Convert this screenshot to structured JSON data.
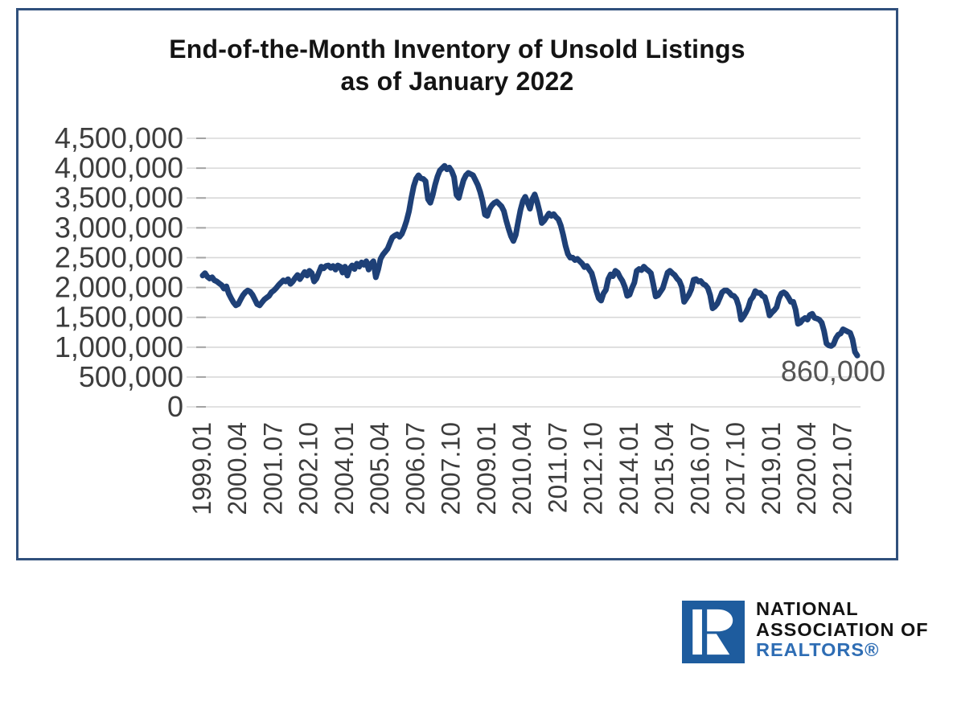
{
  "title": {
    "line1": "End-of-the-Month Inventory of Unsold Listings",
    "line2": "as of January 2022"
  },
  "colors": {
    "line": "#1e4077",
    "frame_border": "#30507c",
    "gridline": "#d8d8d8",
    "axis_tick": "#a3a3a3",
    "axis_text": "#3d3d3d",
    "annotation_text": "#545454",
    "title_text": "#141414",
    "logo_square": "#1e5c9e",
    "logo_text": "#131313",
    "logo_realtors_text": "#2e6db4"
  },
  "chart_data": {
    "type": "line",
    "title": "End-of-the-Month Inventory of Unsold Listings as of January 2022",
    "series_name": "End-of-month inventory of unsold listings",
    "grid": "horizontal",
    "legend": "none",
    "x_start": "1999.01",
    "x_end": "2022.01",
    "x_interval_months": 1,
    "x_tick_labels": [
      "1999.01",
      "2000.04",
      "2001.07",
      "2002.10",
      "2004.01",
      "2005.04",
      "2006.07",
      "2007.10",
      "2009.01",
      "2010.04",
      "2011.07",
      "2012.10",
      "2014.01",
      "2015.04",
      "2016.07",
      "2017.10",
      "2019.01",
      "2020.04",
      "2021.07"
    ],
    "x_tick_step_months": 15,
    "y_tick_labels": [
      "4,500,000",
      "4,000,000",
      "3,500,000",
      "3,000,000",
      "2,500,000",
      "2,000,000",
      "1,500,000",
      "1,000,000",
      "500,000",
      "0"
    ],
    "ylim": [
      0,
      4500000
    ],
    "y_unit": "listings",
    "values_unit": "millions_of_listings",
    "values_millions": [
      2.2,
      2.24,
      2.18,
      2.15,
      2.17,
      2.12,
      2.1,
      2.07,
      2.04,
      1.98,
      2.02,
      1.9,
      1.82,
      1.75,
      1.7,
      1.72,
      1.8,
      1.87,
      1.92,
      1.95,
      1.93,
      1.88,
      1.8,
      1.72,
      1.7,
      1.75,
      1.8,
      1.83,
      1.86,
      1.92,
      1.95,
      1.99,
      2.04,
      2.08,
      2.12,
      2.1,
      2.14,
      2.06,
      2.1,
      2.16,
      2.21,
      2.14,
      2.2,
      2.26,
      2.2,
      2.28,
      2.24,
      2.1,
      2.15,
      2.25,
      2.35,
      2.32,
      2.36,
      2.37,
      2.33,
      2.36,
      2.3,
      2.37,
      2.35,
      2.25,
      2.35,
      2.2,
      2.32,
      2.37,
      2.31,
      2.4,
      2.35,
      2.42,
      2.38,
      2.44,
      2.3,
      2.4,
      2.44,
      2.17,
      2.3,
      2.48,
      2.55,
      2.6,
      2.65,
      2.75,
      2.84,
      2.87,
      2.89,
      2.85,
      2.9,
      3.0,
      3.12,
      3.28,
      3.5,
      3.7,
      3.82,
      3.88,
      3.83,
      3.82,
      3.78,
      3.48,
      3.42,
      3.55,
      3.72,
      3.86,
      3.96,
      4.0,
      4.04,
      3.98,
      4.01,
      3.95,
      3.85,
      3.55,
      3.5,
      3.66,
      3.8,
      3.88,
      3.92,
      3.9,
      3.88,
      3.8,
      3.72,
      3.6,
      3.45,
      3.22,
      3.2,
      3.32,
      3.38,
      3.42,
      3.44,
      3.4,
      3.36,
      3.28,
      3.12,
      2.98,
      2.86,
      2.78,
      2.88,
      3.1,
      3.3,
      3.45,
      3.52,
      3.42,
      3.32,
      3.48,
      3.56,
      3.44,
      3.28,
      3.08,
      3.12,
      3.18,
      3.24,
      3.2,
      3.23,
      3.18,
      3.14,
      3.04,
      2.88,
      2.7,
      2.56,
      2.5,
      2.5,
      2.46,
      2.48,
      2.44,
      2.4,
      2.34,
      2.36,
      2.3,
      2.24,
      2.1,
      1.94,
      1.82,
      1.78,
      1.9,
      1.96,
      2.14,
      2.22,
      2.19,
      2.28,
      2.25,
      2.17,
      2.11,
      2.01,
      1.86,
      1.88,
      1.99,
      2.08,
      2.28,
      2.31,
      2.29,
      2.35,
      2.31,
      2.28,
      2.24,
      2.05,
      1.85,
      1.87,
      1.93,
      1.99,
      2.12,
      2.25,
      2.28,
      2.24,
      2.21,
      2.15,
      2.11,
      2.01,
      1.76,
      1.82,
      1.88,
      1.97,
      2.13,
      2.14,
      2.1,
      2.11,
      2.06,
      2.04,
      1.99,
      1.87,
      1.65,
      1.68,
      1.73,
      1.82,
      1.92,
      1.95,
      1.95,
      1.92,
      1.87,
      1.86,
      1.81,
      1.69,
      1.46,
      1.51,
      1.58,
      1.66,
      1.79,
      1.84,
      1.94,
      1.91,
      1.91,
      1.86,
      1.84,
      1.71,
      1.53,
      1.58,
      1.62,
      1.67,
      1.82,
      1.9,
      1.92,
      1.89,
      1.83,
      1.76,
      1.76,
      1.63,
      1.39,
      1.41,
      1.46,
      1.49,
      1.46,
      1.54,
      1.56,
      1.49,
      1.48,
      1.46,
      1.41,
      1.27,
      1.06,
      1.03,
      1.02,
      1.05,
      1.15,
      1.21,
      1.23,
      1.3,
      1.28,
      1.26,
      1.24,
      1.13,
      0.92,
      0.86
    ],
    "last_point": {
      "x": "2022.01",
      "value": 860000,
      "label": "860,000"
    }
  },
  "logo": {
    "line1": "NATIONAL",
    "line2": "ASSOCIATION OF",
    "line3": "REALTORS®",
    "monogram": "R"
  }
}
